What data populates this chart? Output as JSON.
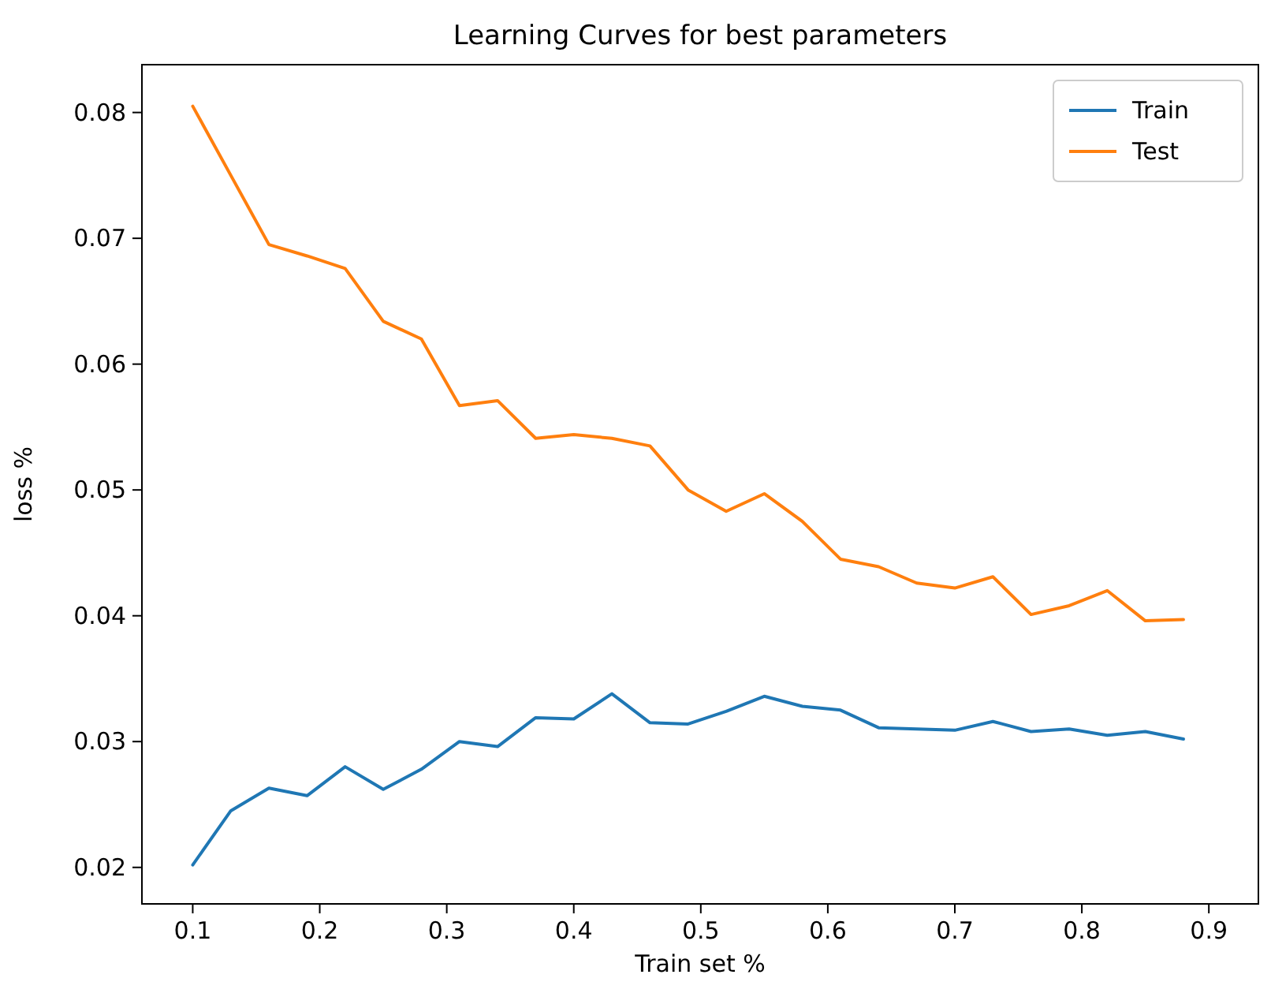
{
  "chart_data": {
    "type": "line",
    "title": "Learning Curves for best parameters",
    "xlabel": "Train set %",
    "ylabel": "loss %",
    "x": [
      0.1,
      0.13,
      0.16,
      0.19,
      0.22,
      0.25,
      0.28,
      0.31,
      0.34,
      0.37,
      0.4,
      0.43,
      0.46,
      0.49,
      0.52,
      0.55,
      0.58,
      0.61,
      0.64,
      0.67,
      0.7,
      0.73,
      0.76,
      0.79,
      0.82,
      0.85,
      0.88
    ],
    "series": [
      {
        "name": "Train",
        "color": "#1f77b4",
        "values": [
          0.0202,
          0.0245,
          0.0263,
          0.0257,
          0.028,
          0.0262,
          0.0278,
          0.03,
          0.0296,
          0.0319,
          0.0318,
          0.0338,
          0.0315,
          0.0314,
          0.0324,
          0.0336,
          0.0328,
          0.0325,
          0.0311,
          0.031,
          0.0309,
          0.0316,
          0.0308,
          0.031,
          0.0305,
          0.0308,
          0.0302
        ]
      },
      {
        "name": "Test",
        "color": "#ff7f0e",
        "values": [
          0.0805,
          0.075,
          0.0695,
          0.0686,
          0.0676,
          0.0634,
          0.062,
          0.0567,
          0.0571,
          0.0541,
          0.0544,
          0.0541,
          0.0535,
          0.05,
          0.0483,
          0.0497,
          0.0475,
          0.0445,
          0.0439,
          0.0426,
          0.0422,
          0.0431,
          0.0401,
          0.0408,
          0.042,
          0.0396,
          0.0397
        ]
      }
    ],
    "xlim": [
      0.06,
      0.939
    ],
    "ylim": [
      0.0171,
      0.0838
    ],
    "xticks": [
      0.1,
      0.2,
      0.3,
      0.4,
      0.5,
      0.6,
      0.7,
      0.8,
      0.9
    ],
    "yticks": [
      0.02,
      0.03,
      0.04,
      0.05,
      0.06,
      0.07,
      0.08
    ],
    "legend": "top right",
    "grid": false,
    "marker": "none",
    "line_style": "solid"
  }
}
